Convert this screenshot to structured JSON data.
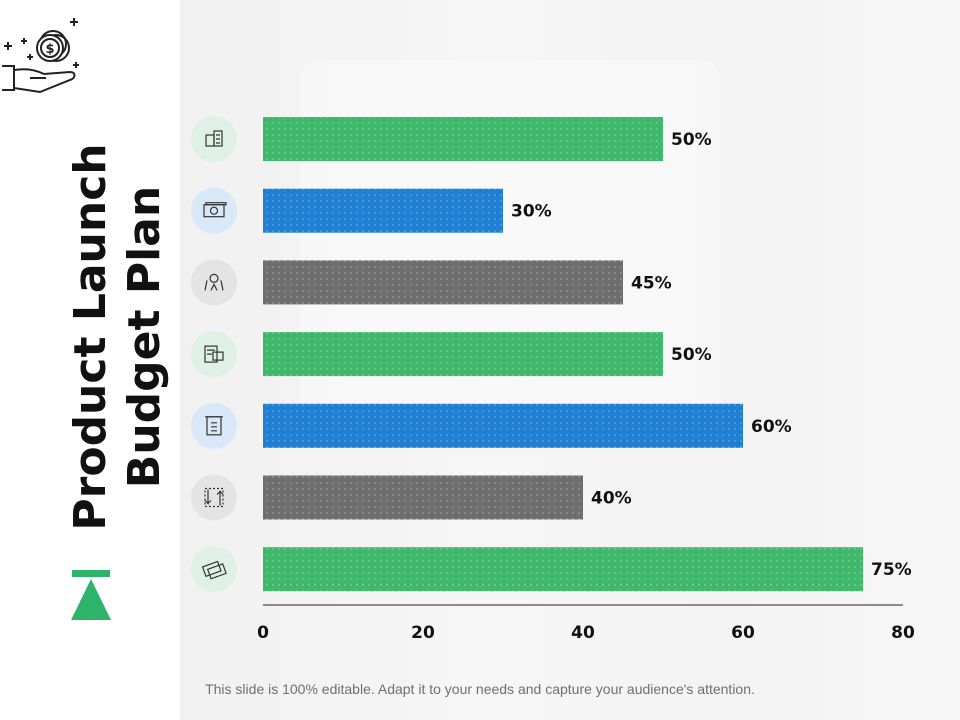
{
  "slide": {
    "title_line1": "Product Launch",
    "title_line2": "Budget Plan",
    "footer_text": "This slide is 100% editable. Adapt it to your needs and capture your audience's attention."
  },
  "colors": {
    "green": "#3fb86b",
    "blue": "#1f7fd3",
    "gray": "#6e6e6e",
    "green_circle": "#dff1e5",
    "blue_circle": "#d9e8f8",
    "gray_circle": "#e4e4e4",
    "accent": "#2db36a"
  },
  "chart_data": {
    "type": "bar",
    "orientation": "horizontal",
    "values": [
      50,
      30,
      45,
      50,
      60,
      40,
      75
    ],
    "data_labels": [
      "50%",
      "30%",
      "45%",
      "50%",
      "60%",
      "40%",
      "75%"
    ],
    "bar_colors": [
      "green",
      "blue",
      "gray",
      "green",
      "blue",
      "gray",
      "green"
    ],
    "category_icons": [
      "building-document-icon",
      "money-bill-icon",
      "investment-growth-icon",
      "budget-clipboard-icon",
      "atm-cash-icon",
      "dollar-exchange-icon",
      "credit-card-icon"
    ],
    "xlim": [
      0,
      80
    ],
    "xticks": [
      0,
      20,
      40,
      60,
      80
    ],
    "xtick_labels": [
      "0",
      "20",
      "40",
      "60",
      "80"
    ],
    "grid": false,
    "legend": "none"
  }
}
